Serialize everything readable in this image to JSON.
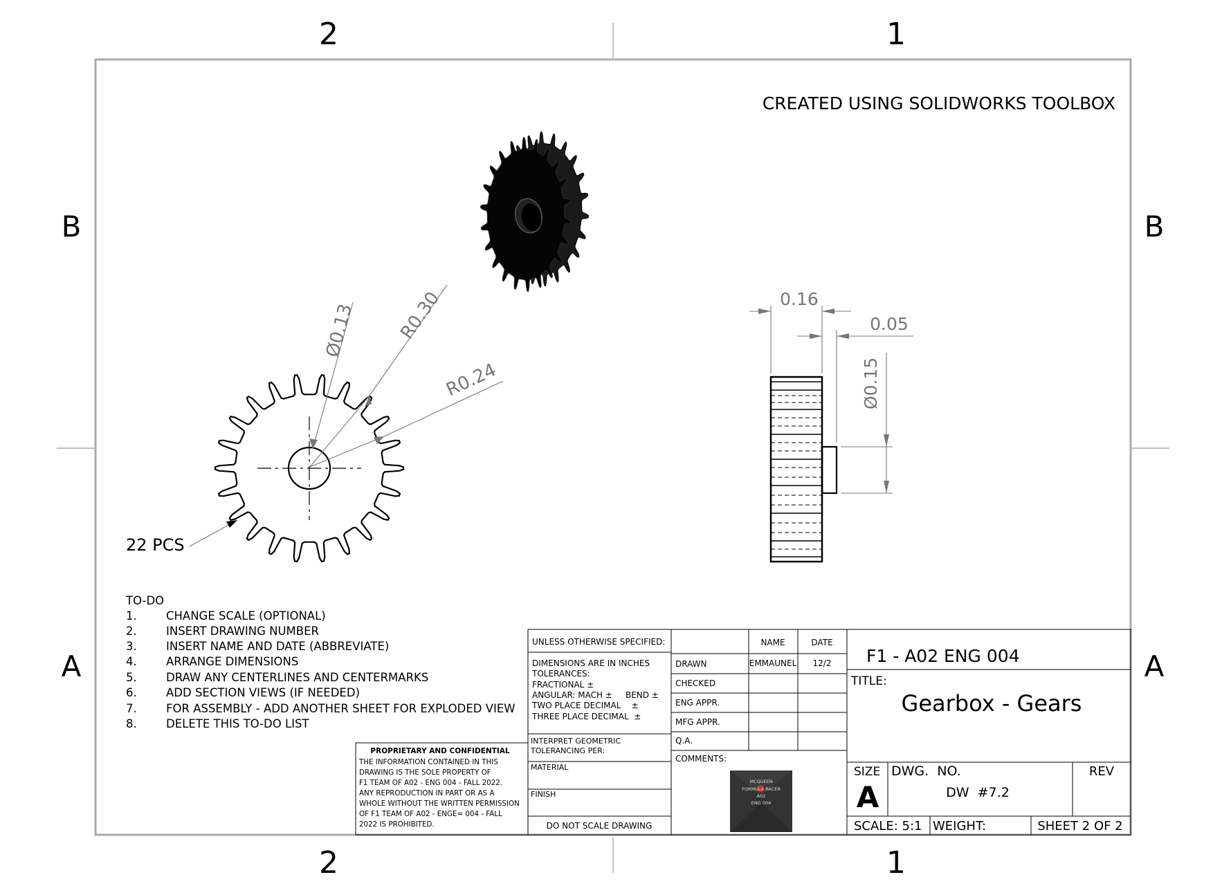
{
  "zones": {
    "top": [
      "2",
      "1"
    ],
    "bottom": [
      "2",
      "1"
    ],
    "left": [
      "B",
      "A"
    ],
    "right": [
      "B",
      "A"
    ]
  },
  "header_note": "CREATED USING SOLIDWORKS TOOLBOX",
  "front_view": {
    "dim_diameter": "Ø0.13",
    "dim_r_outer": "R0.30",
    "dim_r_root": "R0.24",
    "qty_note": "22 PCS"
  },
  "side_view": {
    "dim_width": "0.16",
    "dim_hub": "0.05",
    "dim_hub_diameter": "Ø0.15"
  },
  "todo": {
    "title": "TO-DO",
    "items": [
      {
        "num": "1.",
        "text": "CHANGE SCALE (OPTIONAL)"
      },
      {
        "num": "2.",
        "text": "INSERT DRAWING NUMBER"
      },
      {
        "num": "3.",
        "text": "INSERT NAME AND DATE (ABBREVIATE)"
      },
      {
        "num": "4.",
        "text": "ARRANGE DIMENSIONS"
      },
      {
        "num": "5.",
        "text": "DRAW ANY CENTERLINES AND CENTERMARKS"
      },
      {
        "num": "6.",
        "text": "ADD SECTION VIEWS (IF NEEDED)"
      },
      {
        "num": "7.",
        "text": "FOR ASSEMBLY - ADD ANOTHER SHEET FOR EXPLODED VIEW"
      },
      {
        "num": "8.",
        "text": "DELETE THIS TO-DO LIST"
      }
    ]
  },
  "proprietary": {
    "title": "PROPRIETARY AND CONFIDENTIAL",
    "lines": [
      "THE INFORMATION CONTAINED IN THIS",
      "DRAWING IS THE SOLE PROPERTY OF",
      "F1 TEAM OF A02 - ENG 004 - FALL 2022.",
      "ANY REPRODUCTION IN PART OR AS A",
      "WHOLE WITHOUT THE WRITTEN PERMISSION",
      "OF F1 TEAM OF A02 - ENGE= 004 - FALL",
      "2022 IS PROHIBITED."
    ]
  },
  "tolerances": {
    "header": "UNLESS OTHERWISE SPECIFIED:",
    "lines": [
      "DIMENSIONS ARE IN INCHES",
      "TOLERANCES:",
      "FRACTIONAL ±",
      "ANGULAR: MACH ±     BEND ±",
      "TWO PLACE DECIMAL    ±",
      "THREE PLACE DECIMAL  ±"
    ],
    "interpret_1": "INTERPRET GEOMETRIC",
    "interpret_2": "TOLERANCING PER:",
    "material": "MATERIAL",
    "finish": "FINISH",
    "no_scale": "DO NOT SCALE DRAWING"
  },
  "approvals": {
    "col_name": "NAME",
    "col_date": "DATE",
    "rows": [
      {
        "label": "DRAWN",
        "name": "EMMAUNEL",
        "date": "12/2"
      },
      {
        "label": "CHECKED",
        "name": "",
        "date": ""
      },
      {
        "label": "ENG APPR.",
        "name": "",
        "date": ""
      },
      {
        "label": "MFG APPR.",
        "name": "",
        "date": ""
      },
      {
        "label": "Q.A.",
        "name": "",
        "date": ""
      }
    ],
    "comments": "COMMENTS:",
    "logo_lines": [
      "MCQUEEN",
      "FORMULA RACER",
      "A02",
      "ENG 004"
    ]
  },
  "title_block": {
    "company": "F1 - A02 ENG 004",
    "title_label": "TITLE:",
    "title": "Gearbox - Gears",
    "size_label": "SIZE",
    "size": "A",
    "dwg_label": "DWG.  NO.",
    "dwg_no": "DW  #7.2",
    "rev_label": "REV",
    "scale": "SCALE: 5:1",
    "weight": "WEIGHT:",
    "sheet": "SHEET 2 OF 2"
  }
}
